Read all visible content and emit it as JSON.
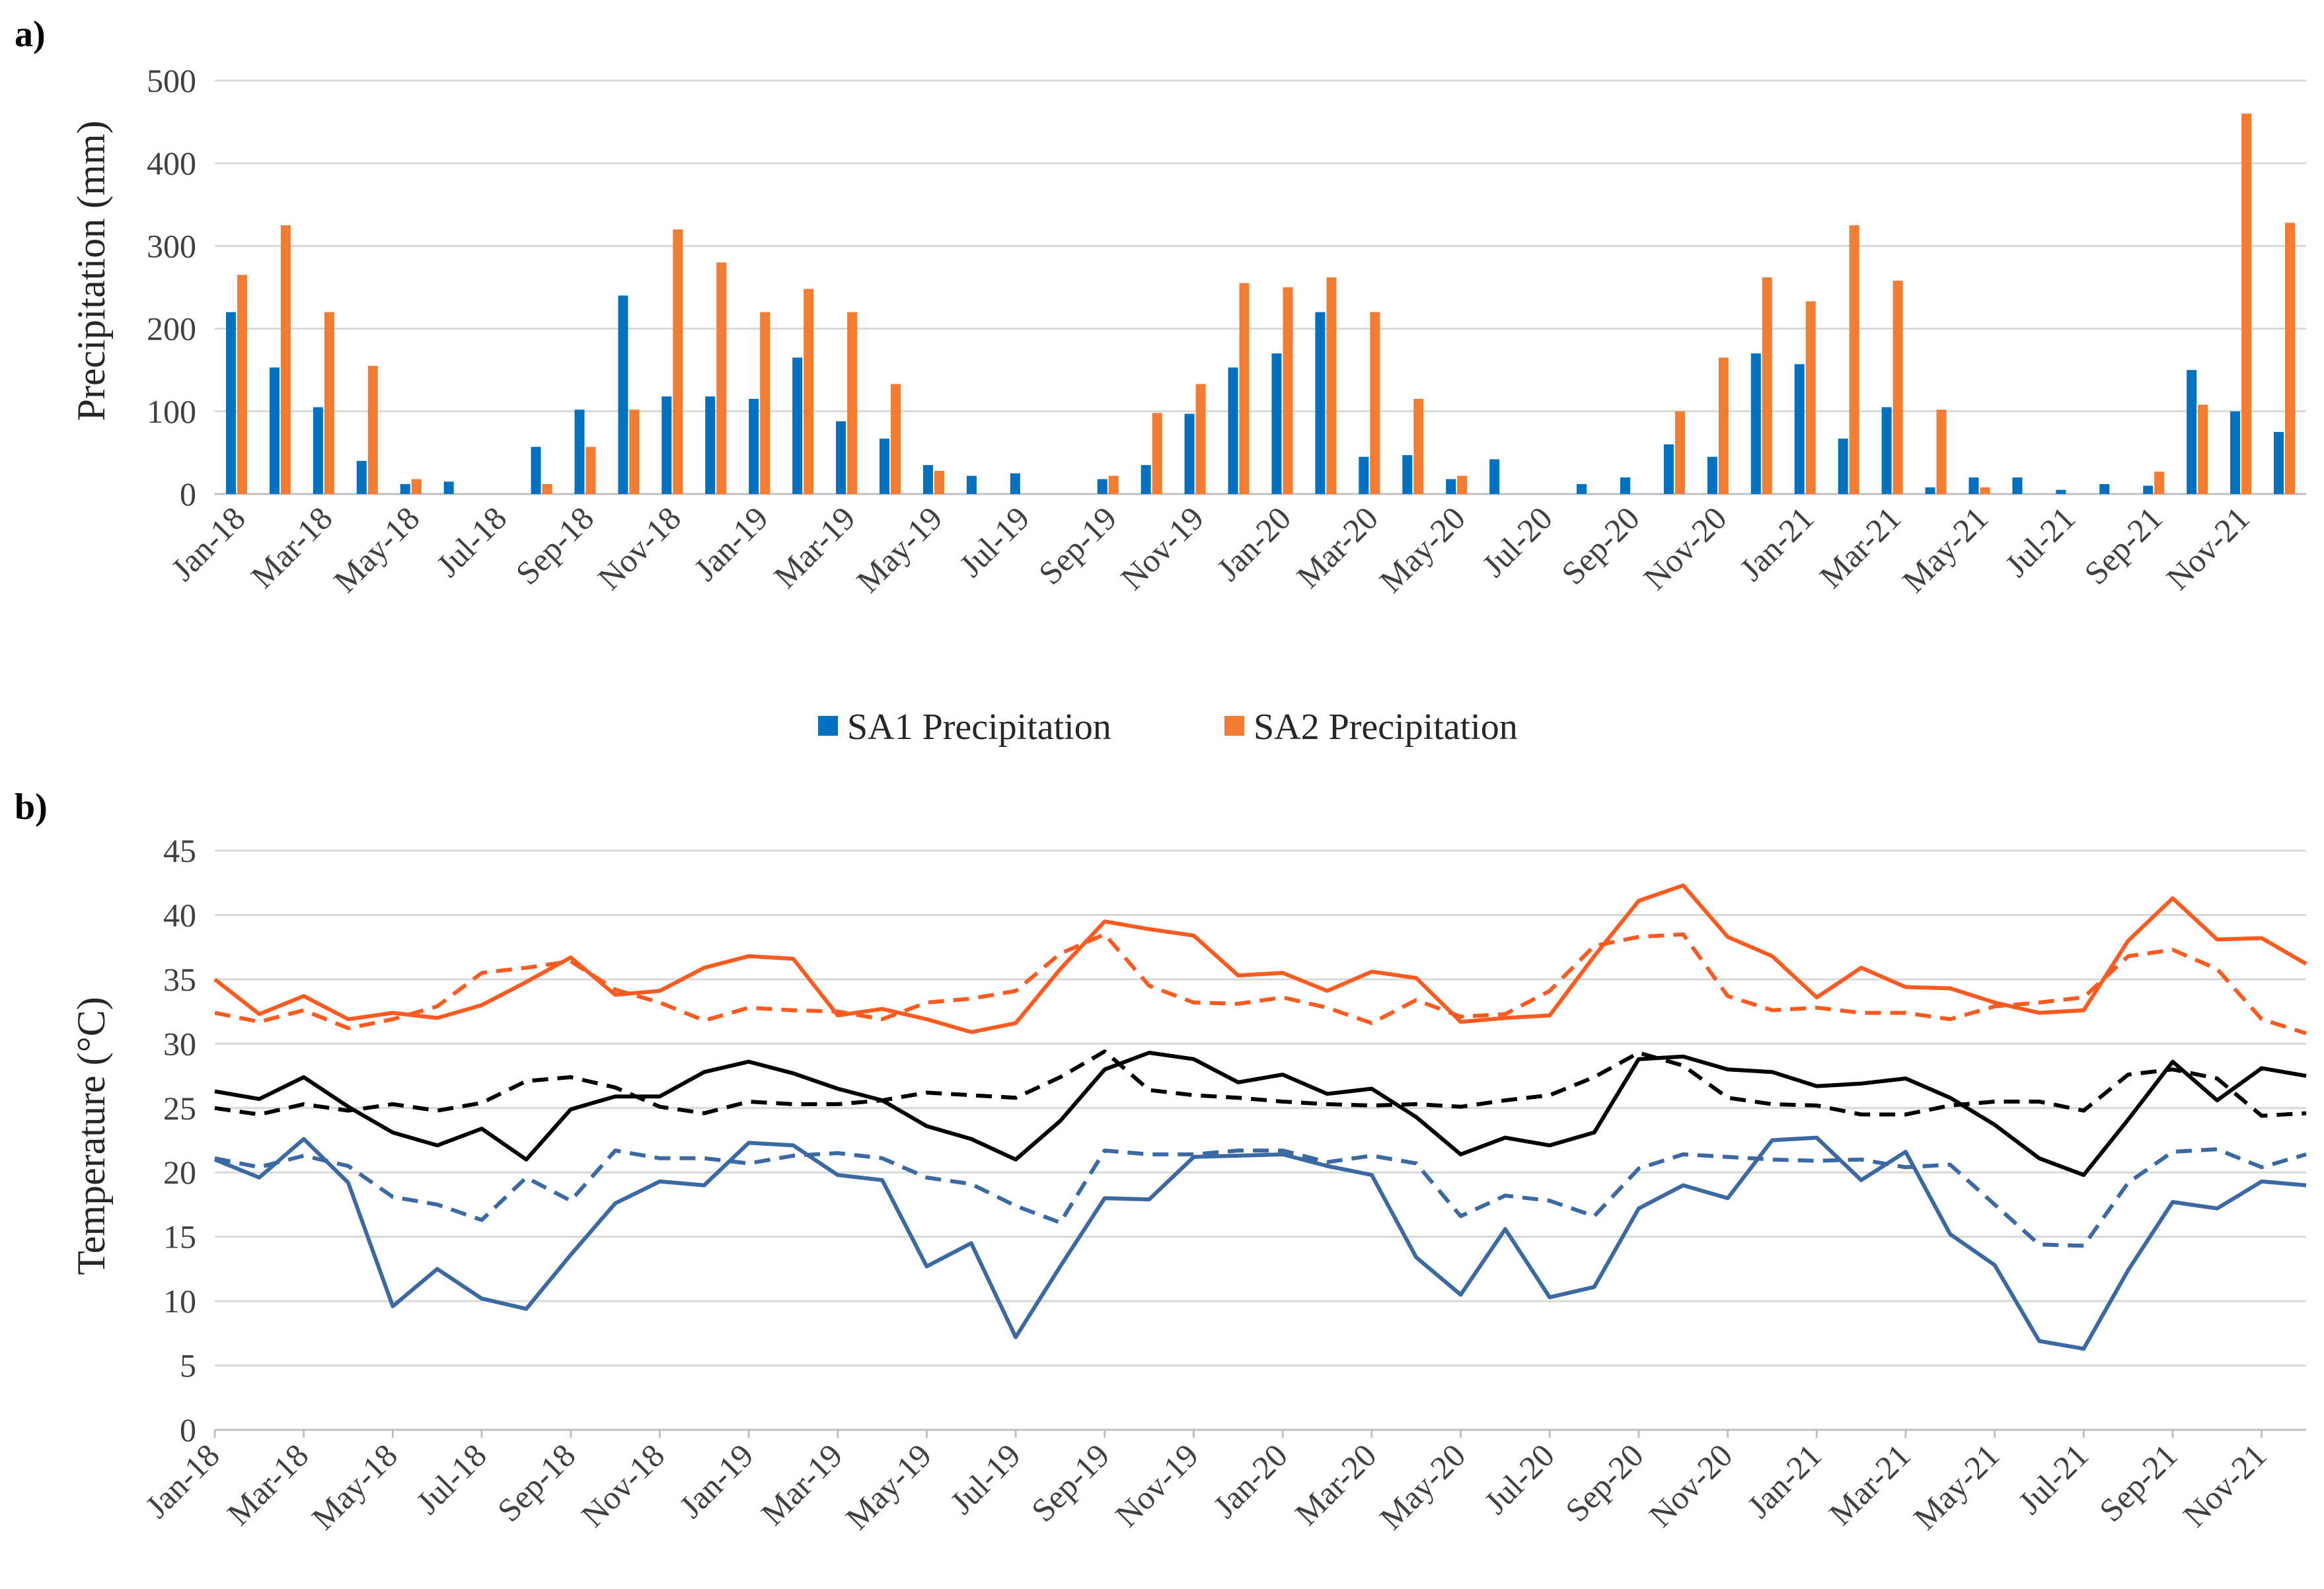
{
  "chart_data": [
    {
      "panel_label": "a)",
      "type": "bar",
      "ylabel": "Precipitation (mm)",
      "ylim": [
        0,
        500
      ],
      "yticks": [
        0,
        100,
        200,
        300,
        400,
        500
      ],
      "categories": [
        "Jan-18",
        "Feb-18",
        "Mar-18",
        "Apr-18",
        "May-18",
        "Jun-18",
        "Jul-18",
        "Aug-18",
        "Sep-18",
        "Oct-18",
        "Nov-18",
        "Dec-18",
        "Jan-19",
        "Feb-19",
        "Mar-19",
        "Apr-19",
        "May-19",
        "Jun-19",
        "Jul-19",
        "Aug-19",
        "Sep-19",
        "Oct-19",
        "Nov-19",
        "Dec-19",
        "Jan-20",
        "Feb-20",
        "Mar-20",
        "Apr-20",
        "May-20",
        "Jun-20",
        "Jul-20",
        "Aug-20",
        "Sep-20",
        "Oct-20",
        "Nov-20",
        "Dec-20",
        "Jan-21",
        "Feb-21",
        "Mar-21",
        "Apr-21",
        "May-21",
        "Jun-21",
        "Jul-21",
        "Aug-21",
        "Sep-21",
        "Oct-21",
        "Nov-21",
        "Dec-21"
      ],
      "tick_labels": [
        "Jan-18",
        "Mar-18",
        "May-18",
        "Jul-18",
        "Sep-18",
        "Nov-18",
        "Jan-19",
        "Mar-19",
        "May-19",
        "Jul-19",
        "Sep-19",
        "Nov-19",
        "Jan-20",
        "Mar-20",
        "May-20",
        "Jul-20",
        "Sep-20",
        "Nov-20",
        "Jan-21",
        "Mar-21",
        "May-21",
        "Jul-21",
        "Sep-21",
        "Nov-21"
      ],
      "series": [
        {
          "name": "SA1 Precipitation",
          "color": "#0070c0",
          "values": [
            220,
            153,
            105,
            40,
            12,
            15,
            0,
            57,
            102,
            240,
            118,
            118,
            115,
            165,
            88,
            67,
            35,
            22,
            25,
            0,
            18,
            35,
            97,
            153,
            170,
            220,
            45,
            47,
            18,
            42,
            0,
            12,
            20,
            60,
            45,
            170,
            157,
            67,
            105,
            8,
            20,
            20,
            5,
            12,
            10,
            150,
            100,
            75
          ]
        },
        {
          "name": "SA2 Precipitation",
          "color": "#f47c30",
          "values": [
            265,
            325,
            220,
            155,
            18,
            0,
            0,
            12,
            57,
            102,
            320,
            280,
            220,
            248,
            220,
            133,
            28,
            0,
            0,
            0,
            22,
            98,
            133,
            255,
            250,
            262,
            220,
            115,
            22,
            0,
            0,
            0,
            0,
            100,
            165,
            262,
            233,
            325,
            258,
            102,
            8,
            0,
            0,
            0,
            27,
            108,
            460,
            328
          ]
        }
      ]
    },
    {
      "panel_label": "b)",
      "type": "line",
      "ylabel": "Temperature (°C)",
      "ylim": [
        0,
        45
      ],
      "yticks": [
        0,
        5,
        10,
        15,
        20,
        25,
        30,
        35,
        40,
        45
      ],
      "categories": [
        "Jan-18",
        "Feb-18",
        "Mar-18",
        "Apr-18",
        "May-18",
        "Jun-18",
        "Jul-18",
        "Aug-18",
        "Sep-18",
        "Oct-18",
        "Nov-18",
        "Dec-18",
        "Jan-19",
        "Feb-19",
        "Mar-19",
        "Apr-19",
        "May-19",
        "Jun-19",
        "Jul-19",
        "Aug-19",
        "Sep-19",
        "Oct-19",
        "Nov-19",
        "Dec-19",
        "Jan-20",
        "Feb-20",
        "Mar-20",
        "Apr-20",
        "May-20",
        "Jun-20",
        "Jul-20",
        "Aug-20",
        "Sep-20",
        "Oct-20",
        "Nov-20",
        "Dec-20",
        "Jan-21",
        "Feb-21",
        "Mar-21",
        "Apr-21",
        "May-21",
        "Jun-21",
        "Jul-21",
        "Aug-21",
        "Sep-21",
        "Oct-21",
        "Nov-21",
        "Dec-21"
      ],
      "tick_labels": [
        "Jan-18",
        "Mar-18",
        "May-18",
        "Jul-18",
        "Sep-18",
        "Nov-18",
        "Jan-19",
        "Mar-19",
        "May-19",
        "Jul-19",
        "Sep-19",
        "Nov-19",
        "Jan-20",
        "Mar-20",
        "May-20",
        "Jul-20",
        "Sep-20",
        "Nov-20",
        "Jan-21",
        "Mar-21",
        "May-21",
        "Jul-21",
        "Sep-21",
        "Nov-21"
      ],
      "series": [
        {
          "color": "#ff5a1f",
          "dashed": false,
          "values": [
            35,
            32.3,
            33.7,
            31.9,
            32.4,
            32,
            33,
            34.8,
            36.7,
            33.8,
            34.1,
            35.9,
            36.8,
            36.6,
            32.2,
            32.7,
            31.9,
            30.9,
            31.6,
            35.8,
            39.5,
            38.9,
            38.4,
            35.3,
            35.5,
            34.1,
            35.6,
            35.1,
            31.7,
            32,
            32.2,
            36.8,
            41.1,
            42.3,
            38.3,
            36.8,
            33.6,
            35.9,
            34.4,
            34.3,
            33.2,
            32.4,
            32.6,
            38,
            41.3,
            38.1,
            38.2,
            36.2
          ]
        },
        {
          "color": "#ff5a1f",
          "dashed": true,
          "values": [
            32.4,
            31.7,
            32.6,
            31.2,
            31.9,
            32.9,
            35.5,
            35.9,
            36.4,
            34.2,
            33.2,
            31.8,
            32.8,
            32.6,
            32.5,
            31.9,
            33.2,
            33.5,
            34.1,
            37,
            38.5,
            34.5,
            33.2,
            33.1,
            33.6,
            32.8,
            31.6,
            33.4,
            32.1,
            32.3,
            34.1,
            37.6,
            38.3,
            38.5,
            33.7,
            32.6,
            32.8,
            32.4,
            32.4,
            31.9,
            32.9,
            33.2,
            33.6,
            36.8,
            37.3,
            35.8,
            31.9,
            30.8
          ]
        },
        {
          "color": "#000000",
          "dashed": false,
          "values": [
            26.3,
            25.7,
            27.4,
            25.1,
            23.1,
            22.1,
            23.4,
            21,
            24.9,
            25.9,
            25.9,
            27.8,
            28.6,
            27.7,
            26.5,
            25.6,
            23.6,
            22.6,
            21,
            24,
            28,
            29.3,
            28.8,
            27,
            27.6,
            26.1,
            26.5,
            24.3,
            21.4,
            22.7,
            22.1,
            23.1,
            28.8,
            29,
            28,
            27.8,
            26.7,
            26.9,
            27.3,
            25.8,
            23.7,
            21.1,
            19.8,
            24.1,
            28.6,
            25.6,
            28.1,
            27.5
          ]
        },
        {
          "color": "#000000",
          "dashed": true,
          "values": [
            25,
            24.5,
            25.3,
            24.8,
            25.3,
            24.8,
            25.4,
            27.1,
            27.4,
            26.6,
            25.1,
            24.6,
            25.5,
            25.3,
            25.3,
            25.6,
            26.2,
            26,
            25.8,
            27.4,
            29.4,
            26.4,
            26,
            25.8,
            25.5,
            25.3,
            25.2,
            25.3,
            25.1,
            25.6,
            26,
            27.4,
            29.3,
            28.3,
            25.8,
            25.3,
            25.2,
            24.5,
            24.5,
            25.2,
            25.5,
            25.5,
            24.8,
            27.6,
            28,
            27.3,
            24.4,
            24.6
          ]
        },
        {
          "color": "#3a69a4",
          "dashed": false,
          "values": [
            21,
            19.6,
            22.6,
            19.2,
            9.6,
            12.5,
            10.2,
            9.4,
            13.6,
            17.6,
            19.3,
            19,
            22.3,
            22.1,
            19.8,
            19.4,
            12.7,
            14.5,
            7.2,
            12.7,
            18,
            17.9,
            21.2,
            21.3,
            21.4,
            20.5,
            19.8,
            13.4,
            10.5,
            15.6,
            10.3,
            11.1,
            17.2,
            19,
            18,
            22.5,
            22.7,
            19.4,
            21.6,
            15.2,
            12.8,
            6.9,
            6.3,
            12.4,
            17.7,
            17.2,
            19.3,
            19
          ]
        },
        {
          "color": "#3a69a4",
          "dashed": true,
          "values": [
            21.1,
            20.4,
            21.3,
            20.5,
            18.1,
            17.5,
            16.3,
            19.6,
            17.8,
            21.7,
            21.1,
            21.1,
            20.7,
            21.3,
            21.5,
            21.1,
            19.6,
            19.1,
            17.4,
            16.1,
            21.7,
            21.4,
            21.4,
            21.7,
            21.7,
            20.8,
            21.3,
            20.7,
            16.6,
            18.2,
            17.8,
            16.6,
            20.3,
            21.4,
            21.2,
            21,
            20.9,
            21,
            20.4,
            20.6,
            17.5,
            14.4,
            14.3,
            19.2,
            21.6,
            21.8,
            20.4,
            21.4
          ]
        }
      ]
    }
  ]
}
